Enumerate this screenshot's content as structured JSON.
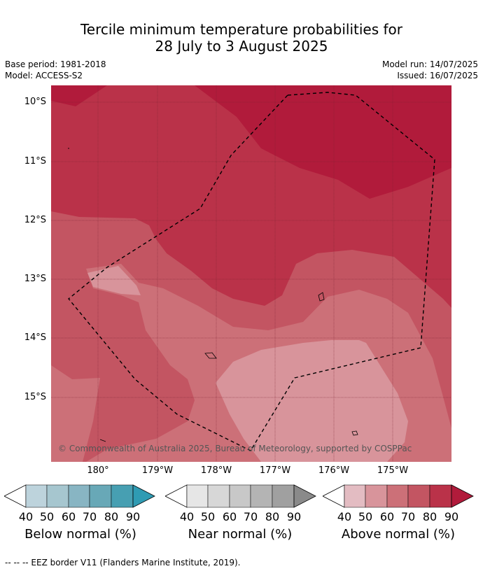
{
  "title_line1": "Tercile minimum temperature probabilities for",
  "title_line2": "28 July to 3 August 2025",
  "base_period": "Base period: 1981-2018",
  "model": "Model: ACCESS-S2",
  "model_run": "Model run: 14/07/2025",
  "issued": "Issued: 16/07/2025",
  "lat_labels": [
    "10°S",
    "11°S",
    "12°S",
    "13°S",
    "14°S",
    "15°S"
  ],
  "lon_labels": [
    "180°",
    "179°W",
    "178°W",
    "177°W",
    "176°W",
    "175°W"
  ],
  "credit": "© Commonwealth of Australia 2025, Bureau of Meteorology, supported by COSPPac",
  "colorbars": [
    {
      "label": "Below normal (%)",
      "ticks": [
        "40",
        "50",
        "60",
        "70",
        "80",
        "90"
      ],
      "colors": [
        "#bdd3dc",
        "#a6c6cf",
        "#88b5c3",
        "#68a8b7",
        "#479fb2",
        "#2f9bb3"
      ]
    },
    {
      "label": "Near normal (%)",
      "ticks": [
        "40",
        "50",
        "60",
        "70",
        "80",
        "90"
      ],
      "colors": [
        "#e6e6e6",
        "#d7d7d7",
        "#c8c8c8",
        "#b4b4b4",
        "#a0a0a0",
        "#8a8a8a"
      ]
    },
    {
      "label": "Above normal (%)",
      "ticks": [
        "40",
        "50",
        "60",
        "70",
        "80",
        "90"
      ],
      "colors": [
        "#e3bcc2",
        "#d8949b",
        "#cc7078",
        "#c35562",
        "#ba3249",
        "#b11b3b"
      ]
    }
  ],
  "footer": "--  --  -- EEZ border V11 (Flanders Marine Institute, 2019).",
  "map_colors": {
    "above_40_50": "#d8949b",
    "above_50_60": "#cc7078",
    "above_60_70": "#c35562",
    "above_70_80": "#ba3249",
    "above_80_90": "#b11b3b"
  }
}
